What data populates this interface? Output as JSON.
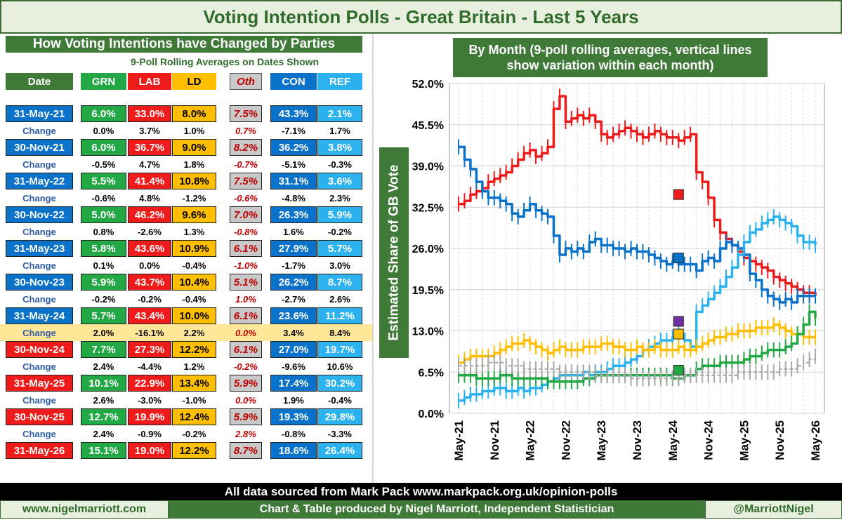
{
  "title": "Voting Intention Polls - Great Britain - Last 5 Years",
  "table": {
    "heading": "How Voting Intentions have Changed by Parties",
    "note": "9-Poll Rolling Averages on Dates Shown",
    "columns": [
      "Date",
      "GRN",
      "LAB",
      "LD",
      "Oth",
      "CON",
      "REF"
    ],
    "col_colors": {
      "GRN": "#22a845",
      "LAB": "#ef1b1b",
      "LD": "#ffbf00",
      "Oth": "#c9c9c9",
      "CON": "#0a72c9",
      "REF": "#2bb2ef"
    },
    "rows": [
      {
        "kind": "date",
        "label": "31-May-21",
        "vals": [
          "6.0%",
          "33.0%",
          "8.0%",
          "7.5%",
          "43.3%",
          "2.1%"
        ],
        "lead": "CON"
      },
      {
        "kind": "change",
        "label": "Change",
        "vals": [
          "0.0%",
          "3.7%",
          "1.0%",
          "0.7%",
          "-7.1%",
          "1.7%"
        ]
      },
      {
        "kind": "date",
        "label": "30-Nov-21",
        "vals": [
          "6.0%",
          "36.7%",
          "9.0%",
          "8.2%",
          "36.2%",
          "3.8%"
        ],
        "lead": "CON"
      },
      {
        "kind": "change",
        "label": "Change",
        "vals": [
          "-0.5%",
          "4.7%",
          "1.8%",
          "-0.7%",
          "-5.1%",
          "-0.3%"
        ]
      },
      {
        "kind": "date",
        "label": "31-May-22",
        "vals": [
          "5.5%",
          "41.4%",
          "10.8%",
          "7.5%",
          "31.1%",
          "3.6%"
        ],
        "lead": "CON"
      },
      {
        "kind": "change",
        "label": "Change",
        "vals": [
          "-0.6%",
          "4.8%",
          "-1.2%",
          "-0.6%",
          "-4.8%",
          "2.3%"
        ]
      },
      {
        "kind": "date",
        "label": "30-Nov-22",
        "vals": [
          "5.0%",
          "46.2%",
          "9.6%",
          "7.0%",
          "26.3%",
          "5.9%"
        ],
        "lead": "CON"
      },
      {
        "kind": "change",
        "label": "Change",
        "vals": [
          "0.8%",
          "-2.6%",
          "1.3%",
          "-0.8%",
          "1.6%",
          "-0.2%"
        ]
      },
      {
        "kind": "date",
        "label": "31-May-23",
        "vals": [
          "5.8%",
          "43.6%",
          "10.9%",
          "6.1%",
          "27.9%",
          "5.7%"
        ],
        "lead": "CON"
      },
      {
        "kind": "change",
        "label": "Change",
        "vals": [
          "0.1%",
          "0.0%",
          "-0.4%",
          "-1.0%",
          "-1.7%",
          "3.0%"
        ]
      },
      {
        "kind": "date",
        "label": "30-Nov-23",
        "vals": [
          "5.9%",
          "43.7%",
          "10.4%",
          "5.1%",
          "26.2%",
          "8.7%"
        ],
        "lead": "CON"
      },
      {
        "kind": "change",
        "label": "Change",
        "vals": [
          "-0.2%",
          "-0.2%",
          "-0.4%",
          "1.0%",
          "-2.7%",
          "2.6%"
        ]
      },
      {
        "kind": "date",
        "label": "31-May-24",
        "vals": [
          "5.7%",
          "43.4%",
          "10.0%",
          "6.1%",
          "23.6%",
          "11.2%"
        ],
        "lead": "CON"
      },
      {
        "kind": "change",
        "label": "Change",
        "vals": [
          "2.0%",
          "-16.1%",
          "2.2%",
          "0.0%",
          "3.4%",
          "8.4%"
        ],
        "highlight": true
      },
      {
        "kind": "date",
        "label": "30-Nov-24",
        "vals": [
          "7.7%",
          "27.3%",
          "12.2%",
          "6.1%",
          "27.0%",
          "19.7%"
        ],
        "lead": "LAB"
      },
      {
        "kind": "change",
        "label": "Change",
        "vals": [
          "2.4%",
          "-4.4%",
          "1.2%",
          "-0.2%",
          "-9.6%",
          "10.6%"
        ]
      },
      {
        "kind": "date",
        "label": "31-May-25",
        "vals": [
          "10.1%",
          "22.9%",
          "13.4%",
          "5.9%",
          "17.4%",
          "30.2%"
        ],
        "lead": "LAB"
      },
      {
        "kind": "change",
        "label": "Change",
        "vals": [
          "2.6%",
          "-3.0%",
          "-1.0%",
          "0.0%",
          "1.9%",
          "-0.4%"
        ]
      },
      {
        "kind": "date",
        "label": "30-Nov-25",
        "vals": [
          "12.7%",
          "19.9%",
          "12.4%",
          "5.9%",
          "19.3%",
          "29.8%"
        ],
        "lead": "LAB"
      },
      {
        "kind": "change",
        "label": "Change",
        "vals": [
          "2.4%",
          "-0.9%",
          "-0.2%",
          "2.8%",
          "-0.8%",
          "-3.3%"
        ]
      },
      {
        "kind": "date",
        "label": "31-May-26",
        "vals": [
          "15.1%",
          "19.0%",
          "12.2%",
          "8.7%",
          "18.6%",
          "26.4%"
        ],
        "lead": "LAB"
      }
    ]
  },
  "chart_data": {
    "type": "line",
    "title": "By Month (9-poll rolling averages, vertical lines show variation within each month)",
    "ylabel": "Estimated Share of GB Vote",
    "xlabel": "",
    "ylim": [
      0,
      52
    ],
    "yticks": [
      "0.0%",
      "6.5%",
      "13.0%",
      "19.5%",
      "26.0%",
      "32.5%",
      "39.0%",
      "45.5%",
      "52.0%"
    ],
    "xticks": [
      "May-21",
      "Nov-21",
      "May-22",
      "Nov-22",
      "May-23",
      "Nov-23",
      "May-24",
      "Nov-24",
      "May-25",
      "Nov-25",
      "May-26"
    ],
    "grid": true,
    "months": 61,
    "series": [
      {
        "key": "LAB",
        "color": "#ef1b1b",
        "values": [
          33,
          33.5,
          34.5,
          35,
          35.5,
          36.5,
          37,
          37.5,
          38,
          39,
          40,
          41,
          41.5,
          40.5,
          41,
          42,
          48,
          50,
          46,
          46.5,
          47,
          46.5,
          47,
          46,
          44,
          43.5,
          44,
          44.5,
          45,
          44.5,
          44,
          43.5,
          44,
          44.5,
          44,
          43.5,
          43.5,
          43,
          43.5,
          44,
          38,
          36.5,
          34,
          30.5,
          28.5,
          27.5,
          26.5,
          25.5,
          24.5,
          24,
          23.5,
          23,
          22.5,
          21.5,
          21,
          20.5,
          20,
          19.5,
          19,
          19,
          18.5
        ]
      },
      {
        "key": "CON",
        "color": "#0a72c9",
        "values": [
          42,
          40,
          38.5,
          36.5,
          35,
          34,
          34,
          33.5,
          33,
          31.5,
          31,
          32,
          33,
          32,
          31.5,
          31,
          28,
          25,
          26,
          25.5,
          26,
          25.5,
          27,
          27.5,
          26.5,
          26.5,
          26,
          26,
          25.5,
          26,
          25.5,
          25.5,
          25,
          24.5,
          24,
          23.5,
          24,
          23.5,
          23.5,
          23.5,
          22.5,
          24,
          24.5,
          24,
          26,
          27,
          26.5,
          26,
          25,
          22,
          21,
          19.5,
          18.5,
          18,
          17.5,
          18,
          17.5,
          18.5,
          18.5,
          18.5,
          18.5
        ]
      },
      {
        "key": "REF",
        "color": "#2bb2ef",
        "values": [
          2,
          2.5,
          3,
          3,
          3.5,
          3.5,
          4,
          4,
          3.5,
          3.5,
          4,
          3.5,
          4,
          4,
          4.5,
          5,
          5.5,
          6,
          6,
          6,
          6,
          6.5,
          6,
          6.5,
          6.5,
          7,
          7.5,
          7.5,
          8,
          8.5,
          9,
          10,
          10.5,
          11,
          11.5,
          11.5,
          12,
          12.5,
          11.5,
          10.5,
          16,
          17,
          18,
          19,
          20,
          21.5,
          23,
          25,
          27,
          28.5,
          29,
          30,
          30.5,
          31,
          30.5,
          30,
          29.5,
          28,
          27,
          27,
          26.5
        ]
      },
      {
        "key": "LD",
        "color": "#ffbf00",
        "values": [
          8,
          8.5,
          9,
          9,
          9,
          9,
          9.5,
          10,
          10.5,
          11,
          11,
          11.5,
          11,
          10.5,
          10,
          9.5,
          10,
          10.5,
          10,
          10,
          10,
          10.5,
          10.5,
          10.5,
          11,
          11,
          10.5,
          10.5,
          10,
          10,
          10.5,
          10,
          10,
          10.5,
          10,
          10,
          10,
          10.5,
          10,
          10,
          10.5,
          11,
          11.5,
          12,
          12,
          12.5,
          12.5,
          13,
          13,
          13,
          13.5,
          13.5,
          13.5,
          14,
          13.5,
          13,
          12.5,
          12.5,
          12,
          12,
          12
        ]
      },
      {
        "key": "GRN",
        "color": "#22a845",
        "values": [
          6,
          6,
          6,
          5.5,
          5.5,
          5.5,
          5.5,
          6,
          6,
          5.5,
          5.5,
          5.5,
          5.5,
          5.5,
          5.5,
          5,
          5,
          5,
          5,
          5,
          5,
          5.5,
          5.5,
          6,
          6,
          6,
          6,
          6,
          6,
          6,
          6,
          6,
          6,
          6,
          6,
          6,
          5.5,
          5.5,
          6,
          6,
          7,
          7.5,
          7.5,
          7.5,
          8,
          8,
          8,
          8,
          8.5,
          9,
          9,
          9.5,
          10,
          10,
          10,
          10.5,
          11,
          12.5,
          14,
          16,
          15
        ]
      },
      {
        "key": "Oth",
        "color": "#a8a8a8",
        "dashed": true,
        "values": [
          7.5,
          7.5,
          7.5,
          7.5,
          7.5,
          8,
          8,
          8,
          7.5,
          7.5,
          7.5,
          7,
          7,
          7,
          7,
          7,
          7,
          6.5,
          6.5,
          6.5,
          6.5,
          6.5,
          6.5,
          6,
          6,
          6,
          6,
          6,
          6,
          5.5,
          5.5,
          5.5,
          5.5,
          5.5,
          5.5,
          5.5,
          5.5,
          5.5,
          6,
          6,
          6,
          6,
          6,
          6,
          6,
          6,
          6,
          6.5,
          6.5,
          6.5,
          6.5,
          6.5,
          6.5,
          6.5,
          7,
          7,
          7,
          7.5,
          8,
          8.5,
          9
        ]
      }
    ],
    "markers": [
      {
        "key": "LAB",
        "month": 37,
        "value": 34.5,
        "color": "#ef1b1b"
      },
      {
        "key": "CON",
        "month": 37,
        "value": 24.5,
        "color": "#0a72c9"
      },
      {
        "key": "Oth",
        "month": 37,
        "value": 14.5,
        "color": "#7030a0"
      },
      {
        "key": "LD",
        "month": 37,
        "value": 12.5,
        "color": "#ffbf00"
      },
      {
        "key": "GRN",
        "month": 37,
        "value": 6.8,
        "color": "#22a845"
      }
    ]
  },
  "footer": {
    "source": "All data sourced from Mark Pack www.markpack.org.uk/opinion-polls",
    "website": "www.nigelmarriott.com",
    "credit": "Chart & Table produced by Nigel Marriott, Independent Statistician",
    "handle": "@MarriottNigel"
  }
}
